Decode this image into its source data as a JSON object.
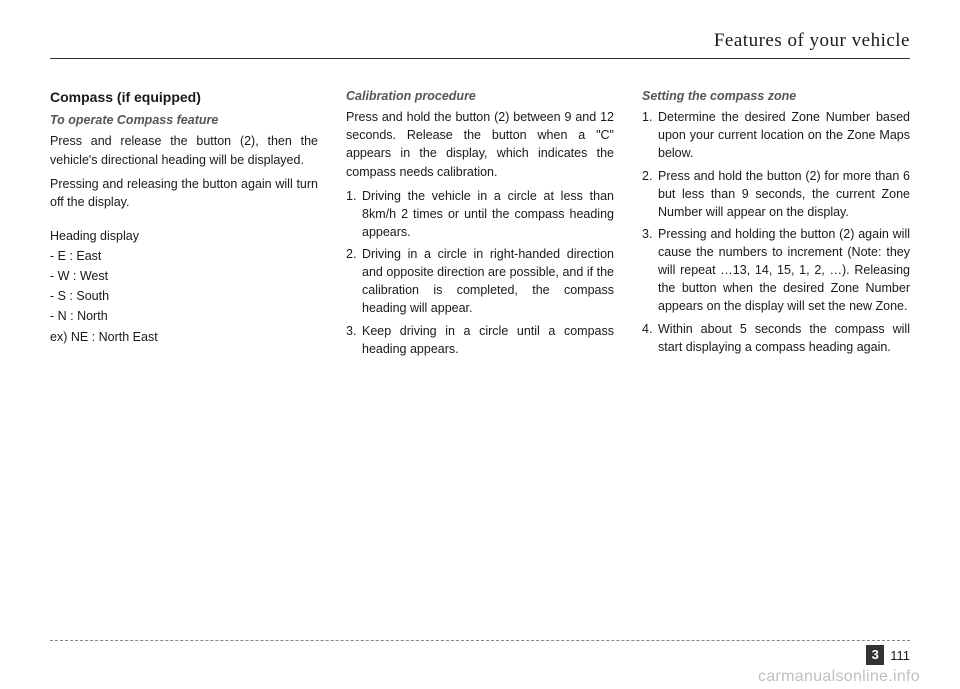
{
  "header": {
    "title": "Features of your vehicle"
  },
  "col1": {
    "title": "Compass (if equipped)",
    "subtitle": "To operate Compass feature",
    "p1": "Press and release the button (2), then the vehicle's directional heading will be displayed.",
    "p2": "Pressing and releasing the button again will turn off the display.",
    "heading_display": "Heading display",
    "dirs": {
      "e": "- E : East",
      "w": "- W : West",
      "s": "- S : South",
      "n": "- N : North",
      "ex": "ex) NE : North East"
    }
  },
  "col2": {
    "subtitle": "Calibration procedure",
    "p1": "Press and hold the button (2) between 9 and 12 seconds. Release the button when a \"C\" appears in the display, which indicates the compass needs calibration.",
    "items": {
      "i1": "Driving the vehicle in a circle at less than 8km/h 2 times or until the compass heading appears.",
      "i2": "Driving in a circle in right-handed direction and opposite direction are possible, and if the calibration is completed, the compass heading will appear.",
      "i3": "Keep driving in a circle until a compass heading appears."
    }
  },
  "col3": {
    "subtitle": "Setting the compass zone",
    "items": {
      "i1": "Determine the desired Zone Number based upon your current location on the Zone Maps below.",
      "i2": "Press and hold the button (2) for more than 6 but less than 9 seconds, the current Zone Number will appear on the display.",
      "i3": "Pressing and holding the button (2) again will cause the numbers to increment (Note: they will repeat …13, 14, 15, 1, 2, …). Releasing the button when the desired Zone Number appears on the display will set the new Zone.",
      "i4": "Within about 5 seconds the compass will start displaying a compass heading again."
    }
  },
  "footer": {
    "chapter": "3",
    "page": "111"
  },
  "watermark": "carmanualsonline.info"
}
